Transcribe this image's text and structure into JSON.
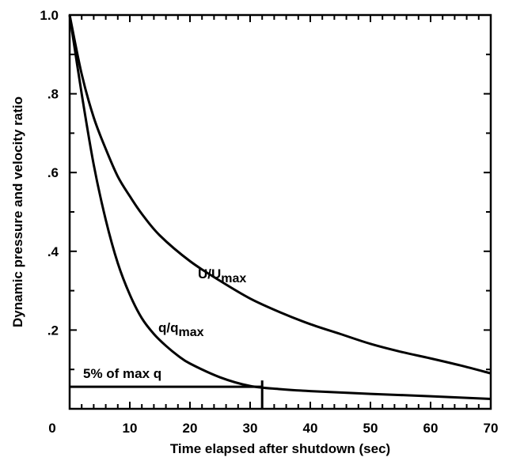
{
  "chart_data": {
    "type": "line",
    "title": "",
    "xlabel": "Time elapsed after shutdown (sec)",
    "ylabel": "Dynamic pressure and velocity ratio",
    "xlim": [
      0,
      70
    ],
    "ylim": [
      0,
      1.0
    ],
    "x_ticks": [
      0,
      10,
      20,
      30,
      40,
      50,
      60,
      70
    ],
    "x_tick_labels": [
      "0",
      "10",
      "20",
      "30",
      "40",
      "50",
      "60",
      "70"
    ],
    "y_ticks": [
      0.2,
      0.4,
      0.6,
      0.8,
      1.0
    ],
    "y_tick_labels": [
      ".2",
      ".4",
      ".6",
      ".8",
      "1.0"
    ],
    "grid": false,
    "line_color": "#000000",
    "series": [
      {
        "name": "U/Umax",
        "label_text": "U/U",
        "label_sub": "max",
        "x": [
          0,
          2,
          4,
          6,
          8,
          10,
          12,
          15,
          20,
          25,
          30,
          35,
          40,
          45,
          50,
          55,
          60,
          65,
          70
        ],
        "y": [
          1.0,
          0.85,
          0.74,
          0.66,
          0.59,
          0.54,
          0.495,
          0.44,
          0.375,
          0.325,
          0.28,
          0.245,
          0.215,
          0.19,
          0.165,
          0.145,
          0.128,
          0.11,
          0.09
        ]
      },
      {
        "name": "q/qmax",
        "label_text": "q/q",
        "label_sub": "max",
        "x": [
          0,
          2,
          4,
          6,
          8,
          10,
          12,
          14,
          16,
          18,
          20,
          25,
          30,
          35,
          40,
          50,
          60,
          70
        ],
        "y": [
          1.0,
          0.8,
          0.62,
          0.48,
          0.37,
          0.29,
          0.23,
          0.19,
          0.16,
          0.135,
          0.115,
          0.08,
          0.058,
          0.05,
          0.045,
          0.038,
          0.032,
          0.025
        ]
      }
    ],
    "annotations": {
      "reference_line": {
        "label": "5% of max q",
        "y": 0.05,
        "x_start": 0,
        "x_end": 32
      },
      "marker_line": {
        "x": 32,
        "y_top": 0.06,
        "y_bottom": 0
      }
    }
  }
}
